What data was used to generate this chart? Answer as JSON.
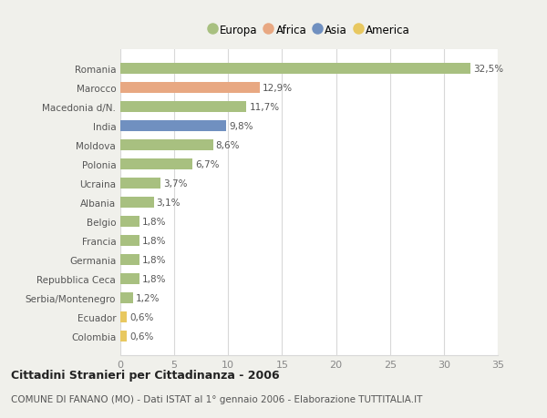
{
  "countries": [
    "Romania",
    "Marocco",
    "Macedonia d/N.",
    "India",
    "Moldova",
    "Polonia",
    "Ucraina",
    "Albania",
    "Belgio",
    "Francia",
    "Germania",
    "Repubblica Ceca",
    "Serbia/Montenegro",
    "Ecuador",
    "Colombia"
  ],
  "values": [
    32.5,
    12.9,
    11.7,
    9.8,
    8.6,
    6.7,
    3.7,
    3.1,
    1.8,
    1.8,
    1.8,
    1.8,
    1.2,
    0.6,
    0.6
  ],
  "continents": [
    "Europa",
    "Africa",
    "Europa",
    "Asia",
    "Europa",
    "Europa",
    "Europa",
    "Europa",
    "Europa",
    "Europa",
    "Europa",
    "Europa",
    "Europa",
    "America",
    "America"
  ],
  "colors": {
    "Europa": "#a8c080",
    "Africa": "#e8a882",
    "Asia": "#7090c0",
    "America": "#e8c860"
  },
  "title": "Cittadini Stranieri per Cittadinanza - 2006",
  "subtitle": "COMUNE DI FANANO (MO) - Dati ISTAT al 1° gennaio 2006 - Elaborazione TUTTITALIA.IT",
  "xlim": [
    0,
    35
  ],
  "xticks": [
    0,
    5,
    10,
    15,
    20,
    25,
    30,
    35
  ],
  "fig_background": "#f0f0eb",
  "plot_background": "#ffffff",
  "grid_color": "#d8d8d8",
  "bar_height": 0.55,
  "label_fontsize": 7.5,
  "tick_fontsize": 8,
  "title_fontsize": 9,
  "subtitle_fontsize": 7.5,
  "legend_order": [
    "Europa",
    "Africa",
    "Asia",
    "America"
  ]
}
